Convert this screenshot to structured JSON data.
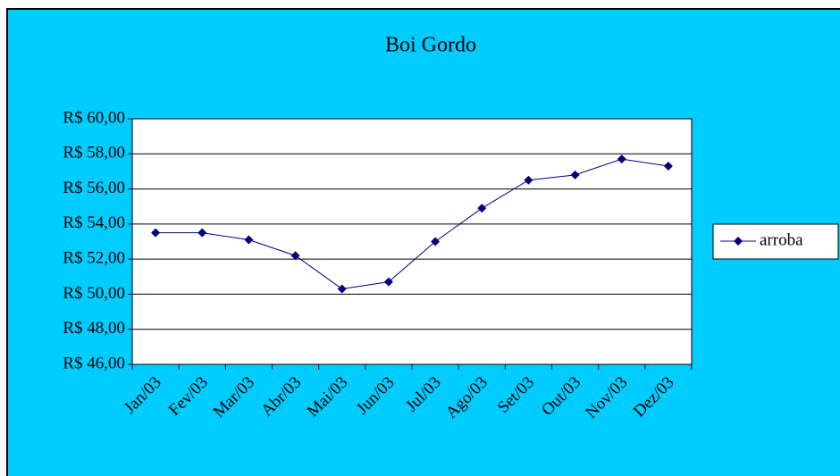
{
  "chart_data": {
    "type": "line",
    "title": "Boi Gordo",
    "categories": [
      "Jan/03",
      "Fev/03",
      "Mar/03",
      "Abr/03",
      "Mai/03",
      "Jun/03",
      "Jul/03",
      "Ago/03",
      "Set/03",
      "Out/03",
      "Nov/03",
      "Dez/03"
    ],
    "series": [
      {
        "name": "arroba",
        "color": "#000080",
        "values": [
          53.5,
          53.5,
          53.1,
          52.2,
          50.3,
          50.7,
          53.0,
          54.9,
          56.5,
          56.8,
          57.7,
          57.3
        ]
      }
    ],
    "ylim": [
      46,
      60
    ],
    "yticks": [
      {
        "value": 46,
        "label": "R$ 46,00"
      },
      {
        "value": 48,
        "label": "R$ 48,00"
      },
      {
        "value": 50,
        "label": "R$ 50,00"
      },
      {
        "value": 52,
        "label": "R$ 52,00"
      },
      {
        "value": 54,
        "label": "R$ 54,00"
      },
      {
        "value": 56,
        "label": "R$ 56,00"
      },
      {
        "value": 58,
        "label": "R$ 58,00"
      },
      {
        "value": 60,
        "label": "R$ 60,00"
      }
    ],
    "grid": true,
    "legend": "right",
    "background": "#00ccff",
    "plot_background": "#ffffff"
  }
}
